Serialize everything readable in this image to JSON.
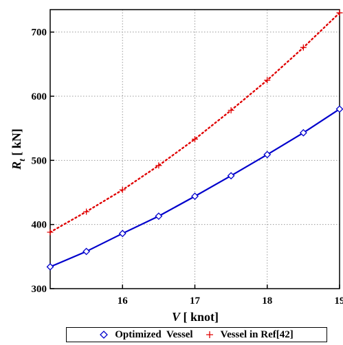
{
  "chart_data": {
    "type": "line",
    "x": [
      15.0,
      15.5,
      16.0,
      16.5,
      17.0,
      17.5,
      18.0,
      18.5,
      19.0
    ],
    "xlim": [
      15,
      19
    ],
    "ylim": [
      300,
      735
    ],
    "xticks": [
      16,
      17,
      18,
      19
    ],
    "yticks": [
      300,
      400,
      500,
      600,
      700
    ],
    "xlabel": {
      "main": "V",
      "unit": " [ knot]"
    },
    "ylabel": {
      "main": "R",
      "sub": "t",
      "unit": " [ kN]"
    },
    "grid": true,
    "legend_position": "bottom",
    "series": [
      {
        "name": "Optimized  Vessel",
        "values": [
          334,
          358,
          386,
          413,
          444,
          476,
          509,
          543,
          580
        ],
        "color": "#0000cc",
        "line": "solid",
        "marker": "diamond"
      },
      {
        "name": "Vessel in Ref[42]",
        "values": [
          388,
          420,
          454,
          492,
          533,
          578,
          625,
          676,
          730
        ],
        "color": "#e00000",
        "line": "dotted",
        "marker": "plus"
      }
    ]
  }
}
